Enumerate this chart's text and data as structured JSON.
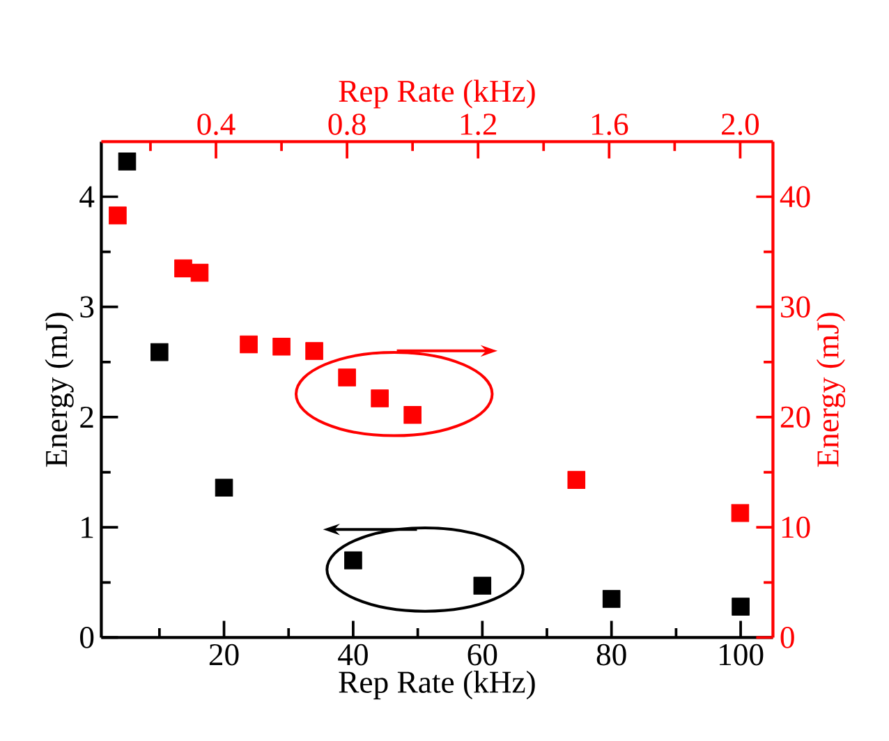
{
  "chart_data": [
    {
      "type": "scatter",
      "xlabel": "Rep Rate (kHz)",
      "ylabel": "Energy (mJ)",
      "xlim": [
        1,
        105
      ],
      "ylim": [
        0,
        4.5
      ],
      "xticks": [
        {
          "value": 10,
          "label": null
        },
        20,
        {
          "value": 30,
          "label": null
        },
        40,
        {
          "value": 50,
          "label": null
        },
        60,
        {
          "value": 70,
          "label": null
        },
        80,
        {
          "value": 90,
          "label": null
        },
        100
      ],
      "yticks": [
        0,
        {
          "value": 0.5,
          "label": null
        },
        1,
        {
          "value": 1.5,
          "label": null
        },
        2,
        {
          "value": 2.5,
          "label": null
        },
        3,
        {
          "value": 3.5,
          "label": null
        },
        4
      ],
      "marker": "square",
      "grid": false,
      "series": [
        {
          "color": "#000000",
          "x": [
            5,
            10,
            20,
            40,
            60,
            80,
            100
          ],
          "values": [
            4.32,
            2.59,
            1.36,
            0.7,
            0.47,
            0.35,
            0.28
          ]
        }
      ]
    },
    {
      "type": "scatter",
      "xlabel": "Rep Rate (kHz)",
      "ylabel": "Energy (mJ)",
      "xlim": [
        0.05,
        2.1
      ],
      "ylim": [
        0,
        45
      ],
      "xticks": [
        {
          "value": 0.2,
          "label": null
        },
        0.4,
        {
          "value": 0.6,
          "label": null
        },
        0.8,
        {
          "value": 1.0,
          "label": null
        },
        1.2,
        {
          "value": 1.4,
          "label": null
        },
        1.6,
        {
          "value": 1.8,
          "label": null
        },
        {
          "value": 2.0,
          "label": "2.0"
        }
      ],
      "yticks": [
        0,
        {
          "value": 5,
          "label": null
        },
        10,
        {
          "value": 15,
          "label": null
        },
        20,
        {
          "value": 25,
          "label": null
        },
        30,
        {
          "value": 35,
          "label": null
        },
        40
      ],
      "marker": "square",
      "grid": false,
      "series": [
        {
          "color": "#ff0000",
          "x": [
            0.1,
            0.3,
            0.35,
            0.5,
            0.6,
            0.7,
            0.8,
            0.9,
            1.0,
            1.5,
            2.0
          ],
          "values": [
            38.3,
            33.5,
            33.1,
            26.6,
            26.4,
            26.0,
            23.6,
            21.7,
            20.2,
            14.3,
            11.3
          ]
        }
      ]
    }
  ]
}
